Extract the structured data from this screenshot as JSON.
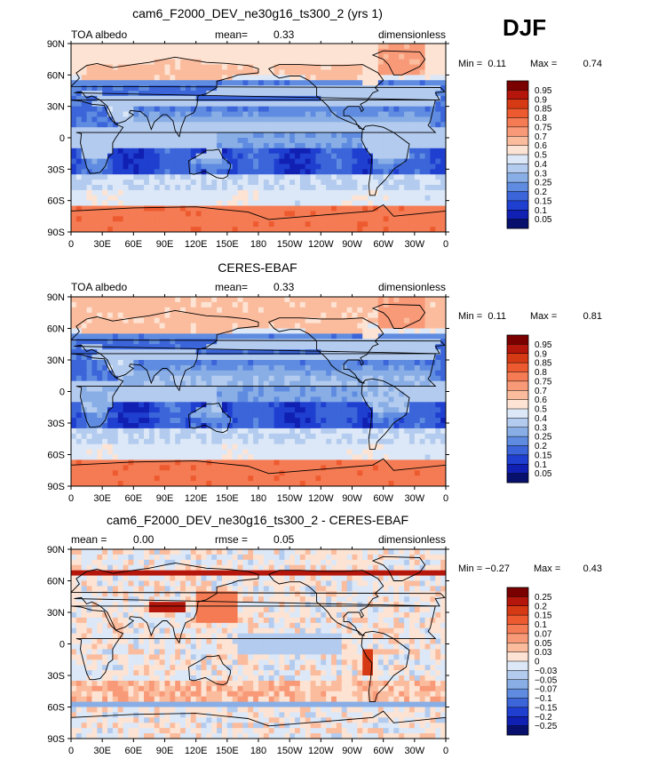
{
  "season": "DJF",
  "chart_data": [
    {
      "type": "heatmap",
      "title": "cam6_F2000_DEV_ne30g16_ts300_2 (yrs 1)",
      "left_label": "TOA albedo",
      "center_label": "mean=",
      "center_value": "0.33",
      "right_label": "dimensionless",
      "min_label": "Min =",
      "min_value": "0.11",
      "max_label": "Max =",
      "max_value": "0.74",
      "x_ticks": [
        "0",
        "30E",
        "60E",
        "90E",
        "120E",
        "150E",
        "180",
        "150W",
        "120W",
        "90W",
        "60W",
        "30W",
        "0"
      ],
      "y_ticks": [
        "90N",
        "60N",
        "30N",
        "0",
        "30S",
        "60S",
        "90S"
      ],
      "colorbar_labels": [
        "0.95",
        "0.9",
        "0.85",
        "0.8",
        "0.75",
        "0.7",
        "0.6",
        "0.5",
        "0.4",
        "0.3",
        "0.25",
        "0.2",
        "0.15",
        "0.1",
        "0.05"
      ],
      "colorbar_colors": [
        "#7a0000",
        "#b5160b",
        "#d63a15",
        "#ee5a2f",
        "#f47b53",
        "#f89a78",
        "#fbbc9e",
        "#fde3d3",
        "#dce8f7",
        "#b3cbee",
        "#89aee6",
        "#5f8ce0",
        "#3b65d9",
        "#1f3fd0",
        "#1020b3",
        "#08106e"
      ],
      "field": "model"
    },
    {
      "type": "heatmap",
      "title": "CERES-EBAF",
      "left_label": "TOA albedo",
      "center_label": "mean=",
      "center_value": "0.33",
      "right_label": "dimensionless",
      "min_label": "Min =",
      "min_value": "0.11",
      "max_label": "Max =",
      "max_value": "0.81",
      "x_ticks": [
        "0",
        "30E",
        "60E",
        "90E",
        "120E",
        "150E",
        "180",
        "150W",
        "120W",
        "90W",
        "60W",
        "30W",
        "0"
      ],
      "y_ticks": [
        "90N",
        "60N",
        "30N",
        "0",
        "30S",
        "60S",
        "90S"
      ],
      "colorbar_labels": [
        "0.95",
        "0.9",
        "0.85",
        "0.8",
        "0.75",
        "0.7",
        "0.6",
        "0.5",
        "0.4",
        "0.3",
        "0.25",
        "0.2",
        "0.15",
        "0.1",
        "0.05"
      ],
      "colorbar_colors": [
        "#7a0000",
        "#b5160b",
        "#d63a15",
        "#ee5a2f",
        "#f47b53",
        "#f89a78",
        "#fbbc9e",
        "#fde3d3",
        "#dce8f7",
        "#b3cbee",
        "#89aee6",
        "#5f8ce0",
        "#3b65d9",
        "#1f3fd0",
        "#1020b3",
        "#08106e"
      ],
      "field": "obs"
    },
    {
      "type": "heatmap",
      "title": "cam6_F2000_DEV_ne30g16_ts300_2 - CERES-EBAF",
      "left_label": "mean =",
      "left_value": "0.00",
      "center_label": "rmse =",
      "center_value": "0.05",
      "right_label": "dimensionless",
      "min_label": "Min =",
      "min_value": "−0.27",
      "max_label": "Max =",
      "max_value": "0.43",
      "x_ticks": [
        "0",
        "30E",
        "60E",
        "90E",
        "120E",
        "150E",
        "180",
        "150W",
        "120W",
        "90W",
        "60W",
        "30W",
        "0"
      ],
      "y_ticks": [
        "90N",
        "60N",
        "30N",
        "0",
        "30S",
        "60S",
        "90S"
      ],
      "colorbar_labels": [
        "0.25",
        "0.2",
        "0.15",
        "0.1",
        "0.07",
        "0.05",
        "0.03",
        "0",
        "−0.03",
        "−0.05",
        "−0.07",
        "−0.1",
        "−0.15",
        "−0.2",
        "−0.25"
      ],
      "colorbar_colors": [
        "#7a0000",
        "#b5160b",
        "#d63a15",
        "#ee5a2f",
        "#f47b53",
        "#f89a78",
        "#fbbc9e",
        "#fde3d3",
        "#dce8f7",
        "#b3cbee",
        "#89aee6",
        "#5f8ce0",
        "#3b65d9",
        "#1f3fd0",
        "#1020b3",
        "#08106e"
      ],
      "field": "diff"
    }
  ]
}
